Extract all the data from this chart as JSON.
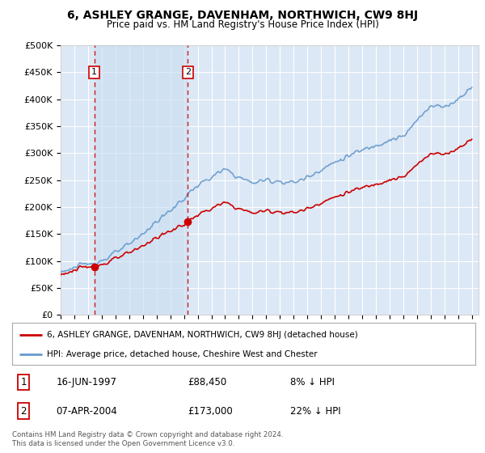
{
  "title": "6, ASHLEY GRANGE, DAVENHAM, NORTHWICH, CW9 8HJ",
  "subtitle": "Price paid vs. HM Land Registry's House Price Index (HPI)",
  "ylabel_ticks": [
    "£0",
    "£50K",
    "£100K",
    "£150K",
    "£200K",
    "£250K",
    "£300K",
    "£350K",
    "£400K",
    "£450K",
    "£500K"
  ],
  "ytick_values": [
    0,
    50000,
    100000,
    150000,
    200000,
    250000,
    300000,
    350000,
    400000,
    450000,
    500000
  ],
  "xlim_start": 1995.0,
  "xlim_end": 2025.5,
  "ylim_min": 0,
  "ylim_max": 500000,
  "purchase1_year": 1997.46,
  "purchase1_price": 88450,
  "purchase2_year": 2004.27,
  "purchase2_price": 173000,
  "legend_house_label": "6, ASHLEY GRANGE, DAVENHAM, NORTHWICH, CW9 8HJ (detached house)",
  "legend_hpi_label": "HPI: Average price, detached house, Cheshire West and Chester",
  "annot1_date": "16-JUN-1997",
  "annot1_price": "£88,450",
  "annot1_hpi": "8% ↓ HPI",
  "annot2_date": "07-APR-2004",
  "annot2_price": "£173,000",
  "annot2_hpi": "22% ↓ HPI",
  "house_line_color": "#cc0000",
  "hpi_line_color": "#6699cc",
  "shade_color": "#dce8f5",
  "background_color": "#dce8f5",
  "grid_color": "#ffffff",
  "copyright_text": "Contains HM Land Registry data © Crown copyright and database right 2024.\nThis data is licensed under the Open Government Licence v3.0.",
  "xtick_years": [
    1995,
    1996,
    1997,
    1998,
    1999,
    2000,
    2001,
    2002,
    2003,
    2004,
    2005,
    2006,
    2007,
    2008,
    2009,
    2010,
    2011,
    2012,
    2013,
    2014,
    2015,
    2016,
    2017,
    2018,
    2019,
    2020,
    2021,
    2022,
    2023,
    2024,
    2025
  ]
}
